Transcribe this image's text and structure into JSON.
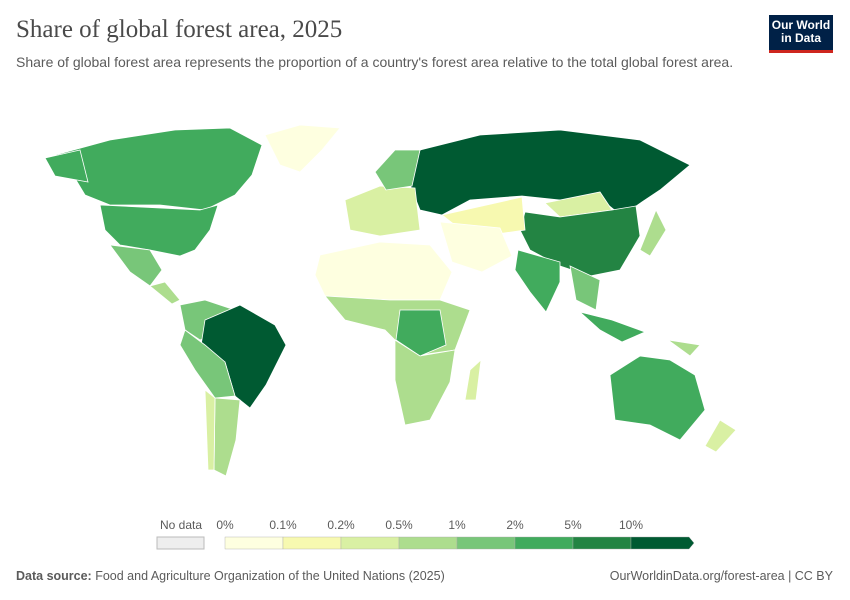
{
  "header": {
    "title": "Share of global forest area, 2025",
    "subtitle": "Share of global forest area represents the proportion of a country's forest area relative to the total global forest area.",
    "logo": "Our World in Data"
  },
  "chart_data": {
    "type": "choropleth",
    "title": "Share of global forest area, 2025",
    "legend": {
      "no_data_label": "No data",
      "tick_labels": [
        "0%",
        "0.1%",
        "0.2%",
        "0.5%",
        "1%",
        "2%",
        "5%",
        "10%"
      ],
      "bin_colors": [
        "#feffe0",
        "#f7f9b0",
        "#d9f0a3",
        "#addd8e",
        "#78c679",
        "#41ab5d",
        "#238443",
        "#005a32"
      ],
      "no_data_color": "#eeeeee"
    },
    "regions": {
      "canada": 5,
      "usa": 5,
      "alaska": 5,
      "greenland": 0,
      "mexico": 4,
      "central_america": 3,
      "brazil": 7,
      "northern_south_america": 4,
      "peru_bolivia": 4,
      "argentina": 3,
      "chile": 2,
      "russia": 7,
      "china": 6,
      "mongolia": 2,
      "india": 5,
      "europe": 2,
      "scandinavia": 4,
      "central_asia": 1,
      "middle_east": 0,
      "north_africa": 0,
      "west_central_africa": 3,
      "drc": 5,
      "southern_africa": 3,
      "madagascar": 2,
      "australia": 5,
      "indonesia": 5,
      "southeast_asia": 4,
      "japan": 3,
      "new_zealand": 2,
      "papua_new_guinea": 3
    }
  },
  "footer": {
    "source_label": "Data source:",
    "source": "Food and Agriculture Organization of the United Nations (2025)",
    "link": "OurWorldinData.org/forest-area | CC BY"
  }
}
